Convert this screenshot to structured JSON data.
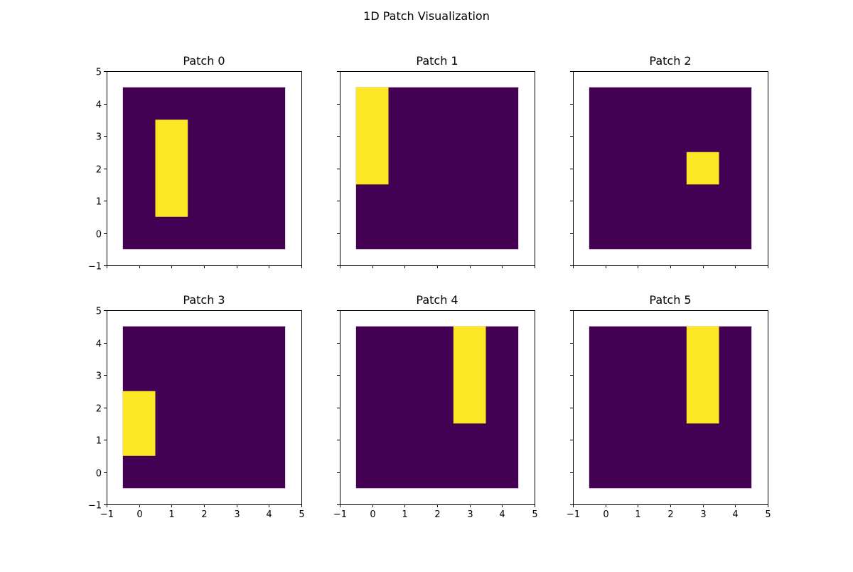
{
  "figure": {
    "suptitle": "1D Patch Visualization"
  },
  "colors": {
    "background": "#440154",
    "highlight": "#fde725",
    "axis": "#000000"
  },
  "chart_data": [
    {
      "type": "heatmap",
      "title": "Patch 0",
      "xlim": [
        -1,
        5
      ],
      "ylim": [
        -1,
        5
      ],
      "grid_extent": [
        -0.5,
        4.5,
        -0.5,
        4.5
      ],
      "highlight": {
        "x": [
          0.5,
          1.5
        ],
        "y": [
          0.5,
          3.5
        ]
      },
      "xticks": [
        "−1",
        "0",
        "1",
        "2",
        "3",
        "4",
        "5"
      ],
      "yticks": [
        "−1",
        "0",
        "1",
        "2",
        "3",
        "4",
        "5"
      ],
      "show_xticklabels": false,
      "show_yticklabels": true
    },
    {
      "type": "heatmap",
      "title": "Patch 1",
      "xlim": [
        -1,
        5
      ],
      "ylim": [
        -1,
        5
      ],
      "grid_extent": [
        -0.5,
        4.5,
        -0.5,
        4.5
      ],
      "highlight": {
        "x": [
          -0.5,
          0.5
        ],
        "y": [
          1.5,
          4.5
        ]
      },
      "xticks": [
        "−1",
        "0",
        "1",
        "2",
        "3",
        "4",
        "5"
      ],
      "yticks": [
        "−1",
        "0",
        "1",
        "2",
        "3",
        "4",
        "5"
      ],
      "show_xticklabels": false,
      "show_yticklabels": false
    },
    {
      "type": "heatmap",
      "title": "Patch 2",
      "xlim": [
        -1,
        5
      ],
      "ylim": [
        -1,
        5
      ],
      "grid_extent": [
        -0.5,
        4.5,
        -0.5,
        4.5
      ],
      "highlight": {
        "x": [
          2.5,
          3.5
        ],
        "y": [
          1.5,
          2.5
        ]
      },
      "xticks": [
        "−1",
        "0",
        "1",
        "2",
        "3",
        "4",
        "5"
      ],
      "yticks": [
        "−1",
        "0",
        "1",
        "2",
        "3",
        "4",
        "5"
      ],
      "show_xticklabels": false,
      "show_yticklabels": false
    },
    {
      "type": "heatmap",
      "title": "Patch 3",
      "xlim": [
        -1,
        5
      ],
      "ylim": [
        -1,
        5
      ],
      "grid_extent": [
        -0.5,
        4.5,
        -0.5,
        4.5
      ],
      "highlight": {
        "x": [
          -0.5,
          0.5
        ],
        "y": [
          0.5,
          2.5
        ]
      },
      "xticks": [
        "−1",
        "0",
        "1",
        "2",
        "3",
        "4",
        "5"
      ],
      "yticks": [
        "−1",
        "0",
        "1",
        "2",
        "3",
        "4",
        "5"
      ],
      "show_xticklabels": true,
      "show_yticklabels": true
    },
    {
      "type": "heatmap",
      "title": "Patch 4",
      "xlim": [
        -1,
        5
      ],
      "ylim": [
        -1,
        5
      ],
      "grid_extent": [
        -0.5,
        4.5,
        -0.5,
        4.5
      ],
      "highlight": {
        "x": [
          2.5,
          3.5
        ],
        "y": [
          1.5,
          4.5
        ]
      },
      "xticks": [
        "−1",
        "0",
        "1",
        "2",
        "3",
        "4",
        "5"
      ],
      "yticks": [
        "−1",
        "0",
        "1",
        "2",
        "3",
        "4",
        "5"
      ],
      "show_xticklabels": true,
      "show_yticklabels": false
    },
    {
      "type": "heatmap",
      "title": "Patch 5",
      "xlim": [
        -1,
        5
      ],
      "ylim": [
        -1,
        5
      ],
      "grid_extent": [
        -0.5,
        4.5,
        -0.5,
        4.5
      ],
      "highlight": {
        "x": [
          2.5,
          3.5
        ],
        "y": [
          1.5,
          4.5
        ]
      },
      "xticks": [
        "−1",
        "0",
        "1",
        "2",
        "3",
        "4",
        "5"
      ],
      "yticks": [
        "−1",
        "0",
        "1",
        "2",
        "3",
        "4",
        "5"
      ],
      "show_xticklabels": true,
      "show_yticklabels": false
    }
  ]
}
